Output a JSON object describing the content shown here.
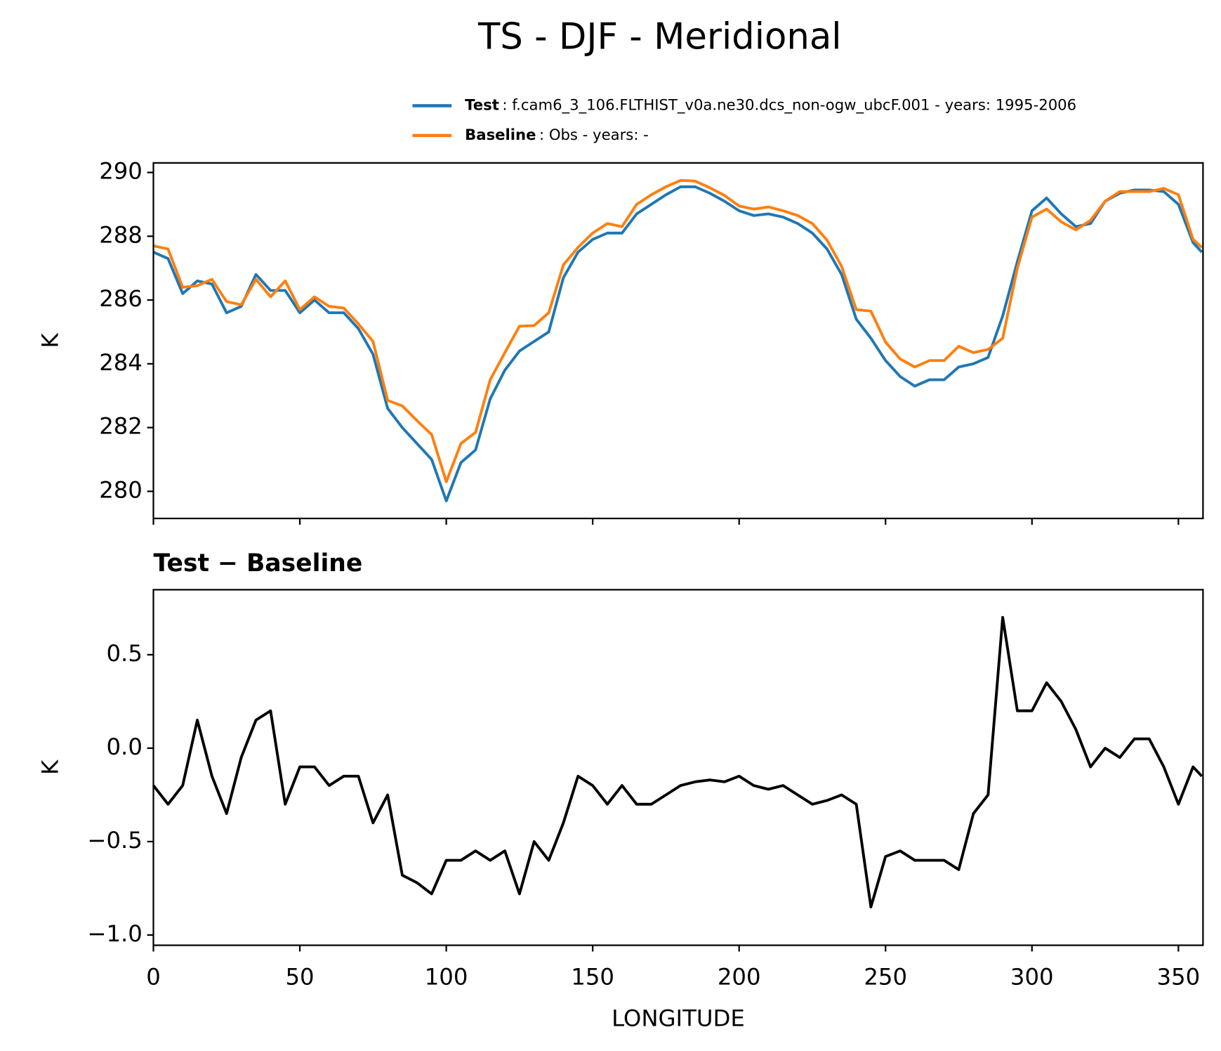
{
  "title": "TS - DJF - Meridional",
  "chart_data": [
    {
      "type": "line",
      "ylabel": "K",
      "xlim": [
        0,
        358.4
      ],
      "ylim": [
        279.15,
        290.3
      ],
      "xticks": [
        0,
        50,
        100,
        150,
        200,
        250,
        300,
        350
      ],
      "yticks": [
        280,
        282,
        284,
        286,
        288,
        290
      ],
      "x": [
        0,
        5,
        10,
        15,
        20,
        25,
        30,
        35,
        40,
        45,
        50,
        55,
        60,
        65,
        70,
        75,
        80,
        85,
        90,
        95,
        100,
        105,
        110,
        115,
        120,
        125,
        130,
        135,
        140,
        145,
        150,
        155,
        160,
        165,
        170,
        175,
        180,
        185,
        190,
        195,
        200,
        205,
        210,
        215,
        220,
        225,
        230,
        235,
        240,
        245,
        250,
        255,
        260,
        265,
        270,
        275,
        280,
        285,
        290,
        295,
        300,
        305,
        310,
        315,
        320,
        325,
        330,
        335,
        340,
        345,
        350,
        355,
        358
      ],
      "series": [
        {
          "name": "Test",
          "label": ": f.cam6_3_106.FLTHIST_v0a.ne30.dcs_non-ogw_ubcF.001 - years: 1995-2006",
          "color": "#1f77b4",
          "values": [
            287.5,
            287.3,
            286.2,
            286.6,
            286.5,
            285.6,
            285.8,
            286.8,
            286.3,
            286.3,
            285.6,
            286.0,
            285.6,
            285.6,
            285.1,
            284.3,
            282.6,
            282.0,
            281.5,
            281.0,
            279.7,
            280.9,
            281.3,
            282.9,
            283.8,
            284.4,
            284.7,
            285.0,
            286.7,
            287.5,
            287.9,
            288.1,
            288.1,
            288.7,
            289.0,
            289.3,
            289.55,
            289.55,
            289.35,
            289.1,
            288.8,
            288.65,
            288.7,
            288.6,
            288.4,
            288.1,
            287.6,
            286.8,
            285.4,
            284.8,
            284.1,
            283.6,
            283.3,
            283.5,
            283.5,
            283.9,
            284.0,
            284.2,
            285.5,
            287.2,
            288.8,
            289.2,
            288.7,
            288.3,
            288.4,
            289.1,
            289.35,
            289.45,
            289.45,
            289.4,
            289.0,
            287.8,
            287.5
          ]
        },
        {
          "name": "Baseline",
          "label": ": Obs - years: -",
          "color": "#ff7f0e",
          "values": [
            287.7,
            287.6,
            286.4,
            286.45,
            286.65,
            285.95,
            285.85,
            286.65,
            286.1,
            286.6,
            285.7,
            286.1,
            285.8,
            285.75,
            285.25,
            284.7,
            282.85,
            282.68,
            282.22,
            281.78,
            280.3,
            281.5,
            281.85,
            283.5,
            284.35,
            285.18,
            285.2,
            285.6,
            287.1,
            287.65,
            288.1,
            288.4,
            288.3,
            289.0,
            289.3,
            289.55,
            289.75,
            289.73,
            289.52,
            289.28,
            288.95,
            288.85,
            288.92,
            288.8,
            288.65,
            288.4,
            287.88,
            287.05,
            285.7,
            285.65,
            284.68,
            284.15,
            283.9,
            284.1,
            284.1,
            284.55,
            284.35,
            284.45,
            284.8,
            287.0,
            288.6,
            288.85,
            288.45,
            288.2,
            288.5,
            289.1,
            289.4,
            289.4,
            289.4,
            289.5,
            289.3,
            287.9,
            287.65
          ]
        }
      ]
    },
    {
      "type": "line",
      "title": "Test − Baseline",
      "ylabel": "K",
      "xlabel": "LONGITUDE",
      "xlim": [
        0,
        358.4
      ],
      "ylim": [
        -1.055,
        0.848
      ],
      "xticks": [
        0,
        50,
        100,
        150,
        200,
        250,
        300,
        350
      ],
      "yticks": [
        {
          "value": -1.0,
          "label": "−1.0"
        },
        {
          "value": -0.5,
          "label": "−0.5"
        },
        {
          "value": 0.0,
          "label": "0.0"
        },
        0.5
      ],
      "x": [
        0,
        5,
        10,
        15,
        20,
        25,
        30,
        35,
        40,
        45,
        50,
        55,
        60,
        65,
        70,
        75,
        80,
        85,
        90,
        95,
        100,
        105,
        110,
        115,
        120,
        125,
        130,
        135,
        140,
        145,
        150,
        155,
        160,
        165,
        170,
        175,
        180,
        185,
        190,
        195,
        200,
        205,
        210,
        215,
        220,
        225,
        230,
        235,
        240,
        245,
        250,
        255,
        260,
        265,
        270,
        275,
        280,
        285,
        290,
        295,
        300,
        305,
        310,
        315,
        320,
        325,
        330,
        335,
        340,
        345,
        350,
        355,
        358
      ],
      "series": [
        {
          "color": "#000000",
          "values": [
            -0.2,
            -0.3,
            -0.2,
            0.15,
            -0.15,
            -0.35,
            -0.05,
            0.15,
            0.2,
            -0.3,
            -0.1,
            -0.1,
            -0.2,
            -0.15,
            -0.15,
            -0.4,
            -0.25,
            -0.68,
            -0.72,
            -0.78,
            -0.6,
            -0.6,
            -0.55,
            -0.6,
            -0.55,
            -0.78,
            -0.5,
            -0.6,
            -0.4,
            -0.15,
            -0.2,
            -0.3,
            -0.2,
            -0.3,
            -0.3,
            -0.25,
            -0.2,
            -0.18,
            -0.17,
            -0.18,
            -0.15,
            -0.2,
            -0.22,
            -0.2,
            -0.25,
            -0.3,
            -0.28,
            -0.25,
            -0.3,
            -0.85,
            -0.58,
            -0.55,
            -0.6,
            -0.6,
            -0.6,
            -0.65,
            -0.35,
            -0.25,
            0.7,
            0.2,
            0.2,
            0.35,
            0.25,
            0.1,
            -0.1,
            0.0,
            -0.05,
            0.05,
            0.05,
            -0.1,
            -0.3,
            -0.1,
            -0.15
          ]
        }
      ]
    }
  ]
}
